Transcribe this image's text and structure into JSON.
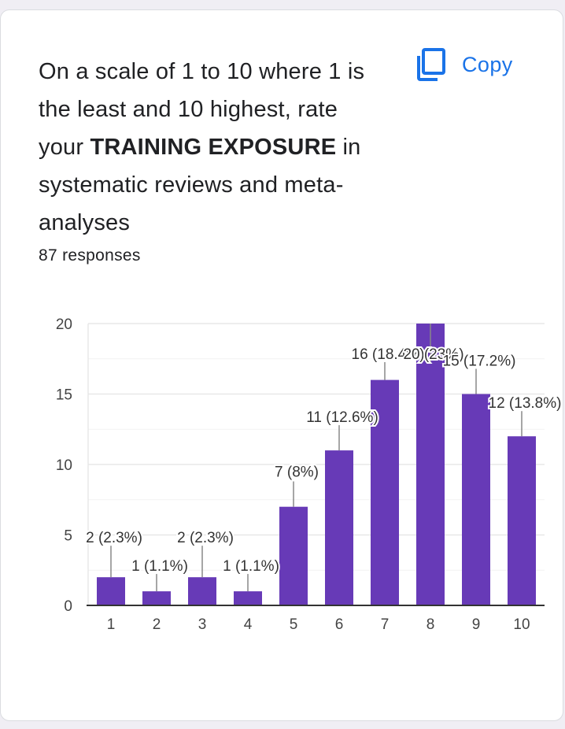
{
  "question": {
    "part1": "On a scale of 1 to 10 where 1 is the least and 10 highest, rate your ",
    "bold": "TRAINING EXPOSURE",
    "part2": " in systematic reviews and meta-analyses"
  },
  "responses_text": "87 responses",
  "copy": {
    "label": "Copy",
    "icon": "copy-icon",
    "color": "#1a73e8"
  },
  "chart_data": {
    "type": "bar",
    "categories": [
      "1",
      "2",
      "3",
      "4",
      "5",
      "6",
      "7",
      "8",
      "9",
      "10"
    ],
    "values": [
      2,
      1,
      2,
      1,
      7,
      11,
      16,
      20,
      15,
      12
    ],
    "data_labels": [
      "2 (2.3%)",
      "1 (1.1%)",
      "2 (2.3%)",
      "1 (1.1%)",
      "7 (8%)",
      "11 (12.6%)",
      "16 (18.4%)",
      "20 (23%)",
      "15 (17.2%)",
      "12 (13.8%)"
    ],
    "y_ticks": [
      0,
      5,
      10,
      15,
      20
    ],
    "ylim": [
      0,
      20
    ],
    "bar_color": "#673ab7",
    "grid": true
  }
}
